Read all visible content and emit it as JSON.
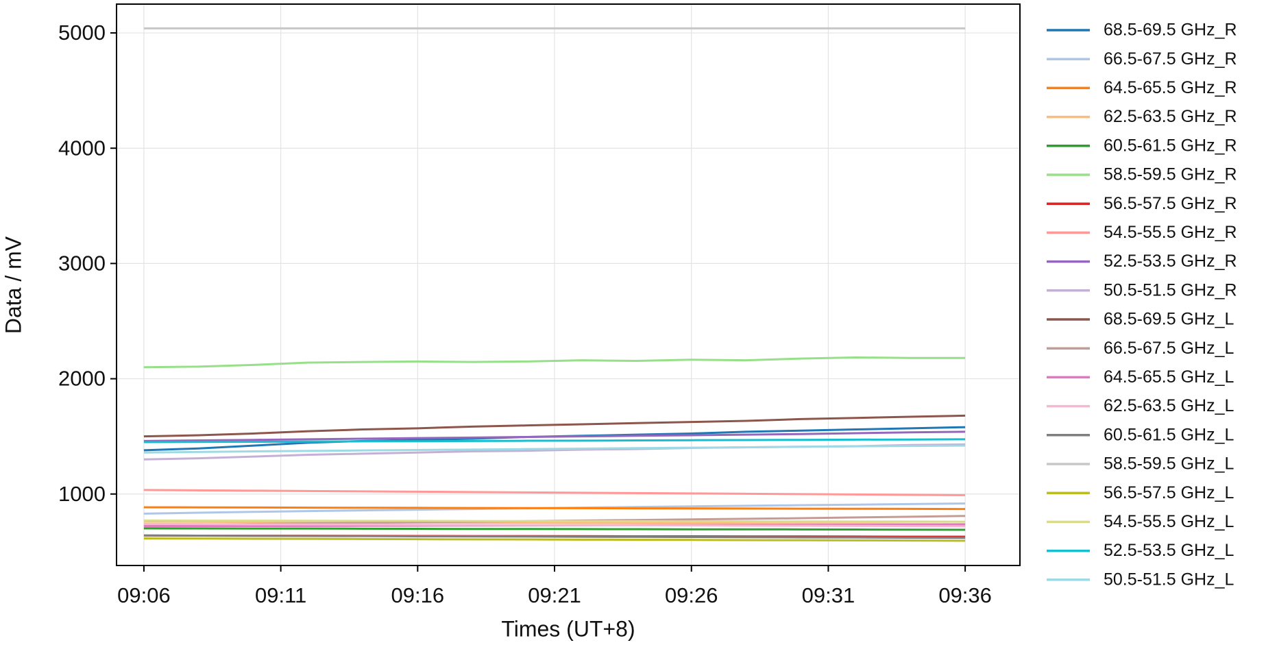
{
  "chart_data": {
    "type": "line",
    "xlabel": "Times (UT+8)",
    "ylabel": "Data / mV",
    "x": [
      "09:06",
      "09:08",
      "09:10",
      "09:12",
      "09:14",
      "09:16",
      "09:18",
      "09:20",
      "09:22",
      "09:24",
      "09:26",
      "09:28",
      "09:30",
      "09:32",
      "09:34",
      "09:36"
    ],
    "xlim": [
      "09:05",
      "09:38"
    ],
    "xticks": [
      "09:06",
      "09:11",
      "09:16",
      "09:21",
      "09:26",
      "09:31",
      "09:36"
    ],
    "ylim": [
      380,
      5250
    ],
    "yticks": [
      1000,
      2000,
      3000,
      4000,
      5000
    ],
    "grid": true,
    "legend": "outside-right",
    "series": [
      {
        "name": "68.5-69.5 GHz_R",
        "color": "#1f77b4",
        "values": [
          1380,
          1395,
          1420,
          1445,
          1460,
          1470,
          1480,
          1495,
          1505,
          1515,
          1525,
          1540,
          1550,
          1560,
          1570,
          1580
        ]
      },
      {
        "name": "66.5-67.5 GHz_R",
        "color": "#aec7e8",
        "values": [
          830,
          838,
          845,
          852,
          858,
          864,
          870,
          876,
          882,
          888,
          893,
          898,
          903,
          908,
          913,
          918
        ]
      },
      {
        "name": "64.5-65.5 GHz_R",
        "color": "#ff7f0e",
        "values": [
          885,
          884,
          883,
          882,
          881,
          880,
          879,
          878,
          877,
          876,
          875,
          874,
          873,
          872,
          871,
          870
        ]
      },
      {
        "name": "62.5-63.5 GHz_R",
        "color": "#ffbb78",
        "values": [
          760,
          759,
          757,
          756,
          755,
          753,
          752,
          751,
          749,
          748,
          747,
          745,
          744,
          743,
          741,
          740
        ]
      },
      {
        "name": "60.5-61.5 GHz_R",
        "color": "#2ca02c",
        "values": [
          702,
          701,
          700,
          700,
          699,
          698,
          697,
          697,
          696,
          695,
          694,
          694,
          693,
          692,
          691,
          690
        ]
      },
      {
        "name": "58.5-59.5 GHz_R",
        "color": "#98df8a",
        "values": [
          2100,
          2105,
          2120,
          2140,
          2145,
          2150,
          2145,
          2150,
          2160,
          2155,
          2165,
          2160,
          2175,
          2185,
          2180,
          2180
        ]
      },
      {
        "name": "56.5-57.5 GHz_R",
        "color": "#d62728",
        "values": [
          640,
          639,
          638,
          638,
          637,
          636,
          635,
          635,
          634,
          633,
          633,
          632,
          632,
          631,
          630,
          630
        ]
      },
      {
        "name": "54.5-55.5 GHz_R",
        "color": "#ff9896",
        "values": [
          1035,
          1032,
          1029,
          1026,
          1023,
          1020,
          1017,
          1014,
          1011,
          1008,
          1005,
          1002,
          999,
          996,
          993,
          990
        ]
      },
      {
        "name": "52.5-53.5 GHz_R",
        "color": "#9467bd",
        "values": [
          1460,
          1465,
          1470,
          1475,
          1480,
          1485,
          1490,
          1495,
          1500,
          1505,
          1510,
          1515,
          1520,
          1528,
          1535,
          1540
        ]
      },
      {
        "name": "50.5-51.5 GHz_R",
        "color": "#c5b0d5",
        "values": [
          1300,
          1310,
          1325,
          1340,
          1350,
          1360,
          1370,
          1375,
          1385,
          1390,
          1400,
          1405,
          1410,
          1415,
          1425,
          1430
        ]
      },
      {
        "name": "68.5-69.5 GHz_L",
        "color": "#8c564b",
        "values": [
          1500,
          1510,
          1525,
          1545,
          1560,
          1570,
          1585,
          1595,
          1605,
          1615,
          1625,
          1635,
          1650,
          1660,
          1670,
          1680
        ]
      },
      {
        "name": "66.5-67.5 GHz_L",
        "color": "#c49c94",
        "values": [
          730,
          735,
          740,
          745,
          750,
          755,
          760,
          765,
          770,
          775,
          780,
          785,
          790,
          797,
          803,
          810
        ]
      },
      {
        "name": "64.5-65.5 GHz_L",
        "color": "#e377c2",
        "values": [
          720,
          721,
          722,
          723,
          724,
          725,
          726,
          727,
          728,
          729,
          730,
          731,
          732,
          733,
          734,
          735
        ]
      },
      {
        "name": "62.5-63.5 GHz_L",
        "color": "#f7b6d2",
        "values": [
          740,
          739,
          737,
          736,
          735,
          733,
          732,
          731,
          729,
          728,
          727,
          725,
          724,
          723,
          721,
          720
        ]
      },
      {
        "name": "60.5-61.5 GHz_L",
        "color": "#7f7f7f",
        "values": [
          640,
          639,
          637,
          636,
          635,
          633,
          632,
          631,
          629,
          628,
          627,
          625,
          624,
          623,
          621,
          620
        ]
      },
      {
        "name": "58.5-59.5 GHz_L",
        "color": "#c7c7c7",
        "values": [
          5040,
          5040,
          5040,
          5040,
          5040,
          5040,
          5040,
          5040,
          5040,
          5040,
          5040,
          5040,
          5040,
          5040,
          5040,
          5040
        ]
      },
      {
        "name": "56.5-57.5 GHz_L",
        "color": "#bcbd22",
        "values": [
          615,
          614,
          612,
          611,
          610,
          608,
          607,
          606,
          604,
          603,
          602,
          600,
          599,
          598,
          596,
          595
        ]
      },
      {
        "name": "54.5-55.5 GHz_L",
        "color": "#dbdb8d",
        "values": [
          770,
          769,
          769,
          768,
          767,
          767,
          766,
          765,
          765,
          764,
          763,
          763,
          762,
          761,
          761,
          760
        ]
      },
      {
        "name": "52.5-53.5 GHz_L",
        "color": "#17becf",
        "values": [
          1450,
          1452,
          1453,
          1455,
          1457,
          1458,
          1460,
          1462,
          1463,
          1465,
          1467,
          1468,
          1470,
          1472,
          1473,
          1475
        ]
      },
      {
        "name": "50.5-51.5 GHz_L",
        "color": "#9edae5",
        "values": [
          1360,
          1365,
          1370,
          1374,
          1378,
          1382,
          1386,
          1390,
          1394,
          1398,
          1402,
          1406,
          1410,
          1414,
          1417,
          1420
        ]
      }
    ]
  }
}
